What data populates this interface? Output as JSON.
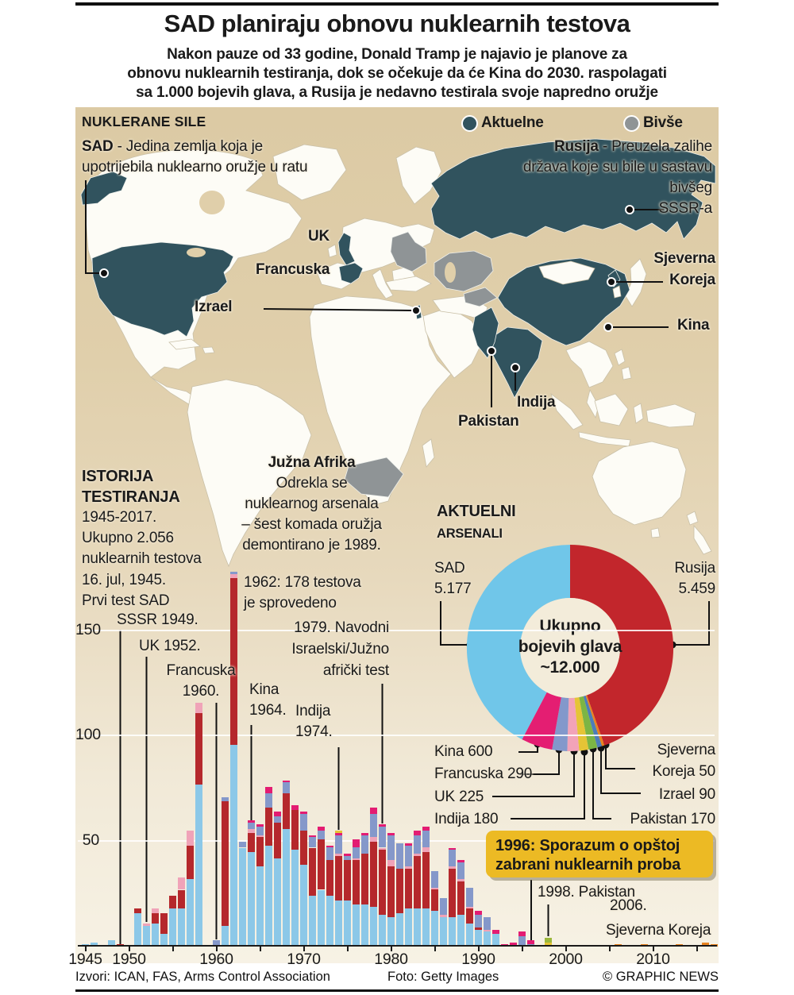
{
  "title": "SAD planiraju obnovu nuklearnih testova",
  "subtitle_lines": [
    "Nakon pauze od 33 godine, Donald Tramp je najavio je planove za",
    "obnovu nuklearnih testiranja, dok se očekuje da će Kina do 2030. raspolagati",
    "sa 1.000 bojevih glava, a Rusija je nedavno testirala svoje napredno oružje"
  ],
  "map": {
    "section_label": "NUKLERANE SILE",
    "legend": {
      "active_label": "Aktuelne",
      "former_label": "Bivše",
      "active_color": "#31535e",
      "former_color": "#8f9496"
    },
    "notes": {
      "sad_bold": "SAD",
      "sad_rest": " - Jedina zemlja koja je",
      "sad_line2": "upotrijebila nuklearno oružje u ratu",
      "rusija_bold": "Rusija",
      "rusija_rest": " - Preuzela zalihe",
      "rusija_line2": "država koje su bile u sastavu",
      "rusija_line3": "bivšeg",
      "rusija_line4": "SSSR-a",
      "juzna_title": "Južna Afrika",
      "juzna_line1": "Odrekla se",
      "juzna_line2": "nuklearnog arsenala",
      "juzna_line3": "– šest komada oružja",
      "juzna_line4": "demontirano je 1989."
    },
    "labels": {
      "uk": "UK",
      "francuska": "Francuska",
      "izrael": "Izrael",
      "sjeverna": "Sjeverna",
      "koreja": "Koreja",
      "kina": "Kina",
      "indija": "Indija",
      "pakistan": "Pakistan"
    }
  },
  "chart_data": [
    {
      "type": "pie",
      "variant": "donut",
      "header": {
        "l1": "AKTUELNI",
        "l2": "ARSENALI"
      },
      "center": {
        "l1": "Ukupno",
        "l2": "bojevih glava",
        "l3": "~12.000"
      },
      "slices": [
        {
          "name": "Rusija",
          "value": 5459,
          "color": "#c2262c"
        },
        {
          "name": "Sjeverna Koreja",
          "value": 50,
          "color": "#e8831f"
        },
        {
          "name": "Izrael",
          "value": 90,
          "color": "#4d7db8"
        },
        {
          "name": "Pakistan",
          "value": 170,
          "color": "#7cb544"
        },
        {
          "name": "Indija",
          "value": 180,
          "color": "#e5c436"
        },
        {
          "name": "UK",
          "value": 225,
          "color": "#f2a3b8"
        },
        {
          "name": "Francuska",
          "value": 290,
          "color": "#8398cb"
        },
        {
          "name": "Kina",
          "value": 600,
          "color": "#e41e72"
        },
        {
          "name": "SAD",
          "value": 5177,
          "color": "#70c6e9"
        }
      ],
      "labels": {
        "sad_name": "SAD",
        "sad_value": "5.177",
        "rusija_name": "Rusija",
        "rusija_value": "5.459",
        "kina": "Kina 600",
        "francuska": "Francuska 290",
        "uk": "UK 225",
        "indija": "Indija 180",
        "pakistan": "Pakistan 170",
        "izrael": "Izrael 90",
        "sk_line1": "Sjeverna",
        "sk_line2": "Koreja 50"
      }
    },
    {
      "type": "bar",
      "stacked": true,
      "header": {
        "l1": "ISTORIJA",
        "l2": "TESTIRANJA",
        "l3": "1945-2017.",
        "l4": "Ukupno 2.056",
        "l5": "nuklearnih testova"
      },
      "x_start": 1945,
      "x_end": 2017,
      "y_ticks": [
        50,
        100,
        150
      ],
      "x_tick_labels": [
        1945,
        1950,
        1960,
        1970,
        1980,
        1990,
        2000,
        2010
      ],
      "series": [
        {
          "name": "SAD",
          "color": "#8cc8e8",
          "values": [
            1,
            2,
            0,
            3,
            0,
            0,
            16,
            10,
            11,
            6,
            18,
            18,
            32,
            77,
            0,
            0,
            10,
            96,
            47,
            45,
            38,
            48,
            42,
            56,
            46,
            39,
            24,
            27,
            24,
            22,
            22,
            20,
            20,
            19,
            15,
            14,
            16,
            18,
            18,
            18,
            17,
            14,
            14,
            15,
            11,
            8,
            7,
            6,
            0,
            0,
            0,
            0,
            0,
            0,
            0,
            0,
            0,
            0,
            0,
            0,
            0,
            0,
            0,
            0,
            0,
            0,
            0,
            0,
            0,
            0,
            0,
            0,
            0
          ]
        },
        {
          "name": "SSSR-Rusija",
          "color": "#b5282c",
          "values": [
            0,
            0,
            0,
            0,
            1,
            0,
            2,
            0,
            5,
            10,
            6,
            9,
            16,
            34,
            0,
            0,
            59,
            79,
            0,
            9,
            14,
            18,
            17,
            17,
            19,
            16,
            23,
            24,
            17,
            21,
            19,
            21,
            24,
            31,
            31,
            24,
            21,
            19,
            25,
            27,
            10,
            0,
            23,
            16,
            7,
            1,
            0,
            0,
            0,
            0,
            0,
            0,
            0,
            0,
            0,
            0,
            0,
            0,
            0,
            0,
            0,
            0,
            0,
            0,
            0,
            0,
            0,
            0,
            0,
            0,
            0,
            0,
            0
          ]
        },
        {
          "name": "UK",
          "color": "#f0a3b8",
          "values": [
            0,
            0,
            0,
            0,
            0,
            0,
            0,
            1,
            2,
            0,
            0,
            6,
            7,
            5,
            0,
            0,
            0,
            2,
            0,
            2,
            1,
            0,
            0,
            0,
            0,
            0,
            0,
            0,
            0,
            1,
            0,
            1,
            0,
            2,
            1,
            3,
            0,
            1,
            1,
            2,
            1,
            1,
            1,
            1,
            1,
            0,
            1,
            0,
            0,
            0,
            0,
            0,
            0,
            0,
            0,
            0,
            0,
            0,
            0,
            0,
            0,
            0,
            0,
            0,
            0,
            0,
            0,
            0,
            0,
            0,
            0,
            0,
            0
          ]
        },
        {
          "name": "Francuska",
          "color": "#8598ca",
          "values": [
            0,
            0,
            0,
            0,
            0,
            0,
            0,
            0,
            0,
            0,
            0,
            0,
            0,
            0,
            0,
            3,
            2,
            1,
            3,
            3,
            4,
            7,
            3,
            5,
            0,
            8,
            5,
            4,
            6,
            9,
            2,
            5,
            9,
            11,
            10,
            12,
            12,
            10,
            9,
            8,
            8,
            8,
            8,
            8,
            9,
            6,
            6,
            0,
            0,
            0,
            5,
            1,
            0,
            0,
            0,
            0,
            0,
            0,
            0,
            0,
            0,
            0,
            0,
            0,
            0,
            0,
            0,
            0,
            0,
            0,
            0,
            0,
            0
          ]
        },
        {
          "name": "Kina",
          "color": "#e31c72",
          "values": [
            0,
            0,
            0,
            0,
            0,
            0,
            0,
            0,
            0,
            0,
            0,
            0,
            0,
            0,
            0,
            0,
            0,
            0,
            0,
            1,
            1,
            3,
            2,
            1,
            2,
            1,
            1,
            2,
            1,
            1,
            1,
            4,
            1,
            3,
            1,
            1,
            0,
            1,
            2,
            2,
            0,
            0,
            1,
            1,
            0,
            2,
            0,
            2,
            1,
            2,
            2,
            2,
            0,
            0,
            0,
            0,
            0,
            0,
            0,
            0,
            0,
            0,
            0,
            0,
            0,
            0,
            0,
            0,
            0,
            0,
            0,
            0,
            0
          ]
        },
        {
          "name": "Indija",
          "color": "#e5c436",
          "values": [
            0,
            0,
            0,
            0,
            0,
            0,
            0,
            0,
            0,
            0,
            0,
            0,
            0,
            0,
            0,
            0,
            0,
            0,
            0,
            0,
            0,
            0,
            0,
            0,
            0,
            0,
            0,
            0,
            0,
            1,
            0,
            0,
            0,
            0,
            0,
            0,
            0,
            0,
            0,
            0,
            0,
            0,
            0,
            0,
            0,
            0,
            0,
            0,
            0,
            0,
            0,
            0,
            0,
            2,
            0,
            0,
            0,
            0,
            0,
            0,
            0,
            0,
            0,
            0,
            0,
            0,
            0,
            0,
            0,
            0,
            0,
            0,
            0
          ]
        },
        {
          "name": "Pakistan",
          "color": "#9cb83c",
          "values": [
            0,
            0,
            0,
            0,
            0,
            0,
            0,
            0,
            0,
            0,
            0,
            0,
            0,
            0,
            0,
            0,
            0,
            0,
            0,
            0,
            0,
            0,
            0,
            0,
            0,
            0,
            0,
            0,
            0,
            0,
            0,
            0,
            0,
            0,
            0,
            0,
            0,
            0,
            0,
            0,
            0,
            0,
            0,
            0,
            0,
            0,
            0,
            0,
            0,
            0,
            0,
            0,
            0,
            2,
            0,
            0,
            0,
            0,
            0,
            0,
            0,
            0,
            0,
            0,
            0,
            0,
            0,
            0,
            0,
            0,
            0,
            0,
            0
          ]
        },
        {
          "name": "Sjeverna Koreja",
          "color": "#e8831f",
          "values": [
            0,
            0,
            0,
            0,
            0,
            0,
            0,
            0,
            0,
            0,
            0,
            0,
            0,
            0,
            0,
            0,
            0,
            0,
            0,
            0,
            0,
            0,
            0,
            0,
            0,
            0,
            0,
            0,
            0,
            0,
            0,
            0,
            0,
            0,
            0,
            0,
            0,
            0,
            0,
            0,
            0,
            0,
            0,
            0,
            0,
            0,
            0,
            0,
            0,
            0,
            0,
            0,
            0,
            0,
            0,
            0,
            0,
            0,
            0,
            0,
            0,
            1,
            0,
            0,
            1,
            0,
            0,
            0,
            1,
            0,
            0,
            2,
            1
          ]
        }
      ],
      "annotations": {
        "first_test_1": "16. jul, 1945.",
        "first_test_2": "Prvi test SAD",
        "sssr": "SSSR 1949.",
        "uk": "UK 1952.",
        "fr_1": "Francuska",
        "fr_2": "1960.",
        "kina_1": "Kina",
        "kina_2": "1964.",
        "y1962_1": "1962: 178 testova",
        "y1962_2": "je sprovedeno",
        "y1979_1": "1979. Navodni",
        "y1979_2": "Israelski/Južno",
        "y1979_3": "afrički test",
        "ind_1": "Indija",
        "ind_2": "1974.",
        "ctbt_1": "1996: Sporazum o opštoj",
        "ctbt_2": "zabrani nuklearnih proba",
        "pak98": "1998. Pakistan",
        "nk_1": "2006.",
        "nk_2": "Sjeverna Koreja"
      }
    }
  ],
  "footer": {
    "sources": "Izvori: ICAN, FAS, Arms Control Association",
    "photo": "Foto: Getty Images",
    "copyright": "© GRAPHIC NEWS"
  }
}
